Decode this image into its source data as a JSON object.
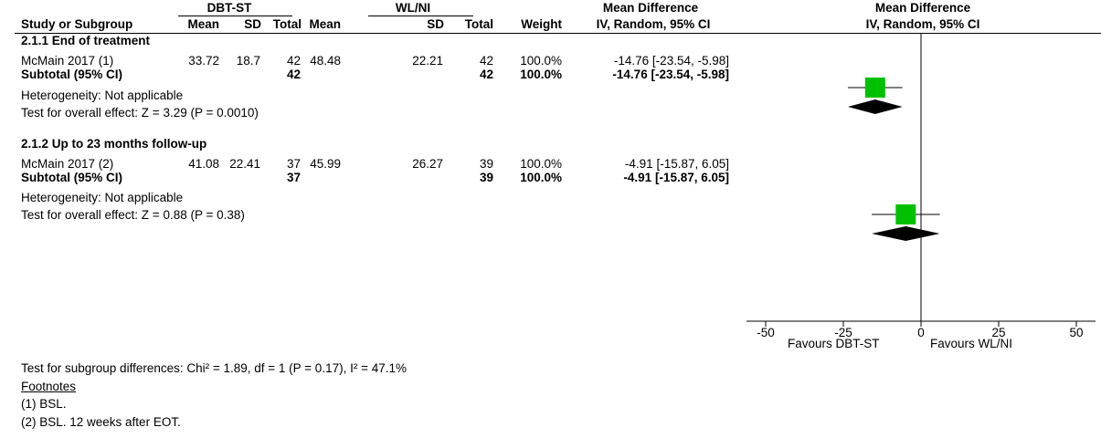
{
  "header": {
    "group1": "DBT-ST",
    "group2": "WL/NI",
    "md_left": "Mean Difference",
    "md_right": "Mean Difference",
    "col_study": "Study or Subgroup",
    "col_mean1": "Mean",
    "col_sd1": "SD",
    "col_total1": "Total",
    "col_mean2": "Mean",
    "col_sd2": "SD",
    "col_total2": "Total",
    "col_weight": "Weight",
    "col_ci_left": "IV, Random, 95% CI",
    "col_ci_right": "IV, Random, 95% CI"
  },
  "subgroups": [
    {
      "title": "2.1.1 End of treatment",
      "study": {
        "name": "McMain 2017 (1)",
        "mean1": "33.72",
        "sd1": "18.7",
        "total1": "42",
        "mean2": "48.48",
        "sd2": "22.21",
        "total2": "42",
        "weight": "100.0%",
        "ci": "-14.76 [-23.54, -5.98]"
      },
      "subtotal": {
        "label": "Subtotal (95% CI)",
        "total1": "42",
        "total2": "42",
        "weight": "100.0%",
        "ci": "-14.76 [-23.54, -5.98]"
      },
      "heterogeneity": "Heterogeneity: Not applicable",
      "overall": "Test for overall effect: Z = 3.29 (P = 0.0010)"
    },
    {
      "title": "2.1.2 Up to 23 months follow-up",
      "study": {
        "name": "McMain 2017 (2)",
        "mean1": "41.08",
        "sd1": "22.41",
        "total1": "37",
        "mean2": "45.99",
        "sd2": "26.27",
        "total2": "39",
        "weight": "100.0%",
        "ci": "-4.91 [-15.87, 6.05]"
      },
      "subtotal": {
        "label": "Subtotal (95% CI)",
        "total1": "37",
        "total2": "39",
        "weight": "100.0%",
        "ci": "-4.91 [-15.87, 6.05]"
      },
      "heterogeneity": "Heterogeneity: Not applicable",
      "overall": "Test for overall effect: Z = 0.88 (P = 0.38)"
    }
  ],
  "axis": {
    "ticks": [
      "-50",
      "-25",
      "0",
      "25",
      "50"
    ],
    "favours_left": "Favours DBT-ST",
    "favours_right": "Favours WL/NI"
  },
  "subgroup_test": "Test for subgroup differences: Chi² = 1.89, df = 1 (P = 0.17), I² = 47.1%",
  "footnotes": {
    "title": "Footnotes",
    "items": [
      "(1) BSL.",
      "(2) BSL. 12 weeks after EOT."
    ]
  },
  "colors": {
    "study_square": "#00c000",
    "diamond": "#000000"
  },
  "chart_data": {
    "type": "forest",
    "xlim": [
      -50,
      50
    ],
    "ticks": [
      -50,
      -25,
      0,
      25,
      50
    ],
    "studies": [
      {
        "label": "McMain 2017 (1)",
        "estimate": -14.76,
        "lower": -23.54,
        "upper": -5.98,
        "weight": 100.0
      },
      {
        "label": "McMain 2017 (2)",
        "estimate": -4.91,
        "lower": -15.87,
        "upper": 6.05,
        "weight": 100.0
      }
    ],
    "subtotals": [
      {
        "label": "Subtotal (95% CI)",
        "estimate": -14.76,
        "lower": -23.54,
        "upper": -5.98
      },
      {
        "label": "Subtotal (95% CI)",
        "estimate": -4.91,
        "lower": -15.87,
        "upper": 6.05
      }
    ],
    "xlabel_left": "Favours DBT-ST",
    "xlabel_right": "Favours WL/NI"
  }
}
